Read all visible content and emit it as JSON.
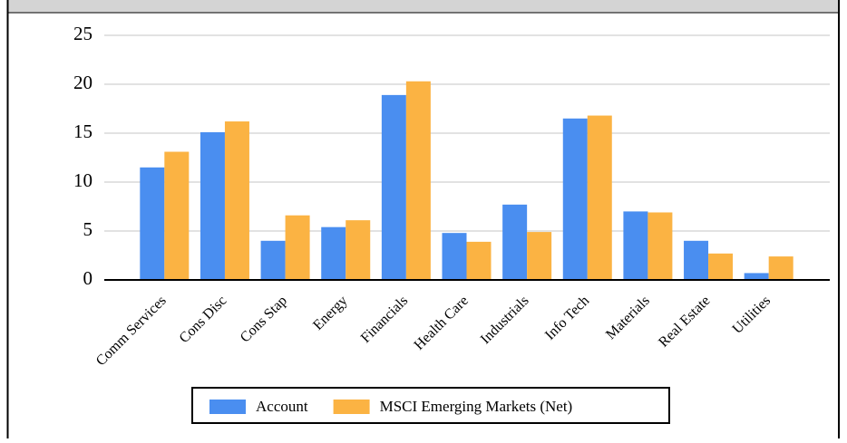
{
  "chart_data": {
    "type": "bar",
    "categories": [
      "Comm Services",
      "Cons Disc",
      "Cons Stap",
      "Energy",
      "Financials",
      "Health Care",
      "Industrials",
      "Info Tech",
      "Materials",
      "Real Estate",
      "Utilities"
    ],
    "series": [
      {
        "name": "Account",
        "color": "#4a8ef0",
        "values": [
          11.5,
          15.1,
          4.0,
          5.4,
          18.9,
          4.8,
          7.7,
          16.5,
          7.0,
          4.0,
          0.7
        ]
      },
      {
        "name": "MSCI Emerging Markets (Net)",
        "color": "#fbb343",
        "values": [
          13.1,
          16.2,
          6.6,
          6.1,
          20.3,
          3.9,
          4.9,
          16.8,
          6.9,
          2.7,
          2.4
        ]
      }
    ],
    "ylim": [
      0,
      25
    ],
    "yticks": [
      0,
      5,
      10,
      15,
      20,
      25
    ],
    "grid": true,
    "legend": "bottom"
  }
}
